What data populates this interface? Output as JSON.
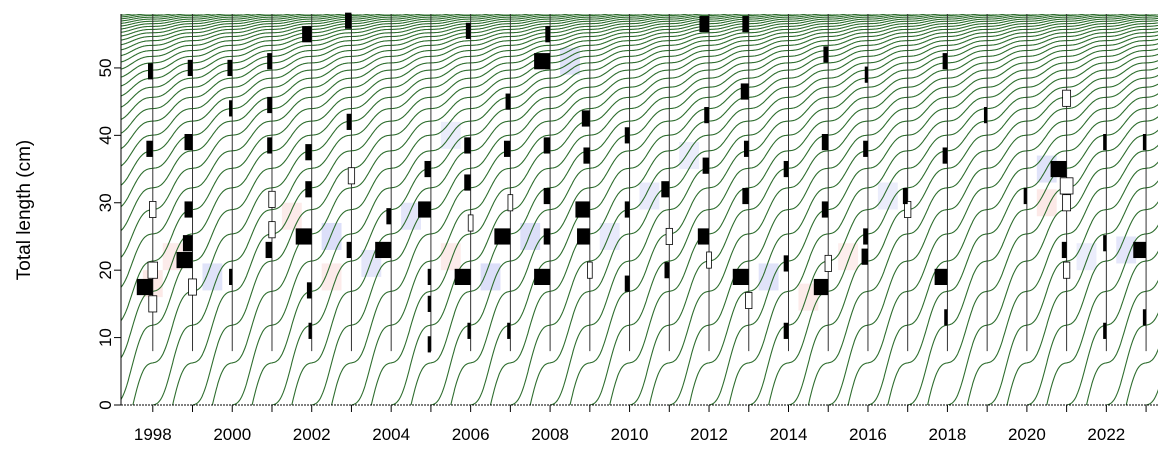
{
  "chart_data": {
    "type": "line",
    "xlabel": "",
    "ylabel": "Total length (cm)",
    "xlim": [
      1997.2,
      2023.3
    ],
    "ylim": [
      0,
      58
    ],
    "x_ticks": [
      1998,
      1999,
      2000,
      2001,
      2002,
      2003,
      2004,
      2005,
      2006,
      2007,
      2008,
      2009,
      2010,
      2011,
      2012,
      2013,
      2014,
      2015,
      2016,
      2017,
      2018,
      2019,
      2020,
      2021,
      2022,
      2023
    ],
    "x_tick_labels": [
      "1998",
      "",
      "2000",
      "",
      "2002",
      "",
      "2004",
      "",
      "2006",
      "",
      "2008",
      "",
      "2010",
      "",
      "2012",
      "",
      "2014",
      "",
      "2016",
      "",
      "2018",
      "",
      "2020",
      "",
      "2022",
      ""
    ],
    "y_ticks": [
      0,
      10,
      20,
      30,
      40,
      50
    ],
    "y_tick_labels": [
      "0",
      "10",
      "20",
      "30",
      "40",
      "50"
    ],
    "growth_curves": {
      "model": "seasonally oscillating von Bertalanffy growth",
      "Linf_cm": 60,
      "K_per_year": 0.22,
      "seasonal_amplitude": 0.9,
      "cohort_start_interval_years": 0.5,
      "first_cohort_start": 1972.0,
      "last_cohort_start": 2023.0,
      "color": "#2f6e2f"
    },
    "length_frequency": {
      "sample_years": [
        1998,
        1999,
        2000,
        2001,
        2002,
        2003,
        2004,
        2005,
        2006,
        2007,
        2008,
        2009,
        2010,
        2011,
        2012,
        2013,
        2014,
        2015,
        2016,
        2017,
        2018,
        2019,
        2020,
        2021,
        2022,
        2023
      ],
      "bin_lengths_cm": [
        8,
        12,
        16,
        20,
        24,
        28,
        32,
        36,
        40,
        44,
        48,
        52,
        56
      ],
      "positive_bar_color": "#000000",
      "negative_bar_color": "#ffffff",
      "sample_line_color": "#333333",
      "bars": [
        {
          "x": 1998,
          "len": 17.5,
          "v": 1.0
        },
        {
          "x": 1998,
          "len": 20.0,
          "v": -0.6
        },
        {
          "x": 1998,
          "len": 15.0,
          "v": -0.5
        },
        {
          "x": 1998,
          "len": 29.0,
          "v": -0.4
        },
        {
          "x": 1998,
          "len": 38.0,
          "v": 0.4
        },
        {
          "x": 1998,
          "len": 49.5,
          "v": 0.3
        },
        {
          "x": 1999,
          "len": 21.5,
          "v": 1.0
        },
        {
          "x": 1999,
          "len": 24.0,
          "v": 0.6
        },
        {
          "x": 1999,
          "len": 17.5,
          "v": -0.5
        },
        {
          "x": 1999,
          "len": 29.0,
          "v": 0.5
        },
        {
          "x": 1999,
          "len": 39.0,
          "v": 0.5
        },
        {
          "x": 1999,
          "len": 50.0,
          "v": 0.3
        },
        {
          "x": 2000,
          "len": 19.0,
          "v": 0.2
        },
        {
          "x": 2000,
          "len": 44.0,
          "v": 0.2
        },
        {
          "x": 2000,
          "len": 50.0,
          "v": 0.3
        },
        {
          "x": 2001,
          "len": 23.0,
          "v": 0.4
        },
        {
          "x": 2001,
          "len": 26.0,
          "v": -0.4
        },
        {
          "x": 2001,
          "len": 30.5,
          "v": -0.4
        },
        {
          "x": 2001,
          "len": 38.5,
          "v": 0.3
        },
        {
          "x": 2001,
          "len": 44.5,
          "v": 0.3
        },
        {
          "x": 2001,
          "len": 51.0,
          "v": 0.3
        },
        {
          "x": 2002,
          "len": 25.0,
          "v": 1.0
        },
        {
          "x": 2002,
          "len": 55.0,
          "v": 0.6
        },
        {
          "x": 2002,
          "len": 17.0,
          "v": 0.3
        },
        {
          "x": 2002,
          "len": 32.0,
          "v": 0.4
        },
        {
          "x": 2002,
          "len": 37.5,
          "v": 0.4
        },
        {
          "x": 2002,
          "len": 11.0,
          "v": 0.2
        },
        {
          "x": 2003,
          "len": 23.0,
          "v": 0.3
        },
        {
          "x": 2003,
          "len": 34.0,
          "v": -0.4
        },
        {
          "x": 2003,
          "len": 42.0,
          "v": 0.3
        },
        {
          "x": 2003,
          "len": 57.0,
          "v": 0.4
        },
        {
          "x": 2004,
          "len": 23.0,
          "v": 1.0
        },
        {
          "x": 2004,
          "len": 28.0,
          "v": 0.3
        },
        {
          "x": 2005,
          "len": 29.0,
          "v": 0.8
        },
        {
          "x": 2005,
          "len": 35.0,
          "v": 0.4
        },
        {
          "x": 2005,
          "len": 19.0,
          "v": 0.2
        },
        {
          "x": 2005,
          "len": 15.0,
          "v": 0.2
        },
        {
          "x": 2005,
          "len": 9.0,
          "v": 0.2
        },
        {
          "x": 2006,
          "len": 19.0,
          "v": 1.0
        },
        {
          "x": 2006,
          "len": 33.0,
          "v": 0.4
        },
        {
          "x": 2006,
          "len": 38.5,
          "v": 0.4
        },
        {
          "x": 2006,
          "len": 55.5,
          "v": 0.3
        },
        {
          "x": 2006,
          "len": 27.0,
          "v": -0.3
        },
        {
          "x": 2006,
          "len": 11.0,
          "v": 0.2
        },
        {
          "x": 2007,
          "len": 25.0,
          "v": 1.0
        },
        {
          "x": 2007,
          "len": 30.0,
          "v": -0.3
        },
        {
          "x": 2007,
          "len": 38.0,
          "v": 0.4
        },
        {
          "x": 2007,
          "len": 11.0,
          "v": 0.2
        },
        {
          "x": 2007,
          "len": 45.0,
          "v": 0.3
        },
        {
          "x": 2008,
          "len": 19.0,
          "v": 1.0
        },
        {
          "x": 2008,
          "len": 25.0,
          "v": 0.4
        },
        {
          "x": 2008,
          "len": 31.0,
          "v": 0.4
        },
        {
          "x": 2008,
          "len": 38.5,
          "v": 0.4
        },
        {
          "x": 2008,
          "len": 51.0,
          "v": 1.0
        },
        {
          "x": 2008,
          "len": 55.0,
          "v": 0.3
        },
        {
          "x": 2009,
          "len": 25.0,
          "v": 0.8
        },
        {
          "x": 2009,
          "len": 29.0,
          "v": 0.9
        },
        {
          "x": 2009,
          "len": 37.0,
          "v": 0.4
        },
        {
          "x": 2009,
          "len": 42.5,
          "v": 0.5
        },
        {
          "x": 2009,
          "len": 20.0,
          "v": -0.3
        },
        {
          "x": 2010,
          "len": 18.0,
          "v": 0.3
        },
        {
          "x": 2010,
          "len": 29.0,
          "v": 0.3
        },
        {
          "x": 2010,
          "len": 40.0,
          "v": 0.3
        },
        {
          "x": 2011,
          "len": 25.0,
          "v": -0.4
        },
        {
          "x": 2011,
          "len": 32.0,
          "v": 0.5
        },
        {
          "x": 2011,
          "len": 20.0,
          "v": 0.3
        },
        {
          "x": 2012,
          "len": 25.0,
          "v": 0.7
        },
        {
          "x": 2012,
          "len": 35.5,
          "v": 0.4
        },
        {
          "x": 2012,
          "len": 43.0,
          "v": 0.3
        },
        {
          "x": 2012,
          "len": 56.5,
          "v": 0.6
        },
        {
          "x": 2012,
          "len": 21.5,
          "v": -0.3
        },
        {
          "x": 2013,
          "len": 19.0,
          "v": 1.0
        },
        {
          "x": 2013,
          "len": 46.5,
          "v": 0.5
        },
        {
          "x": 2013,
          "len": 31.0,
          "v": 0.4
        },
        {
          "x": 2013,
          "len": 15.5,
          "v": -0.4
        },
        {
          "x": 2013,
          "len": 56.5,
          "v": 0.4
        },
        {
          "x": 2013,
          "len": 38.0,
          "v": 0.3
        },
        {
          "x": 2014,
          "len": 21.0,
          "v": 0.3
        },
        {
          "x": 2014,
          "len": 35.0,
          "v": 0.3
        },
        {
          "x": 2014,
          "len": 11.0,
          "v": 0.3
        },
        {
          "x": 2015,
          "len": 17.5,
          "v": 0.9
        },
        {
          "x": 2015,
          "len": 39.0,
          "v": 0.4
        },
        {
          "x": 2015,
          "len": 29.0,
          "v": 0.4
        },
        {
          "x": 2015,
          "len": 21.0,
          "v": -0.4
        },
        {
          "x": 2015,
          "len": 52.0,
          "v": 0.3
        },
        {
          "x": 2016,
          "len": 22.0,
          "v": 0.4
        },
        {
          "x": 2016,
          "len": 25.0,
          "v": 0.3
        },
        {
          "x": 2016,
          "len": 38.0,
          "v": 0.3
        },
        {
          "x": 2016,
          "len": 49.0,
          "v": 0.2
        },
        {
          "x": 2017,
          "len": 29.0,
          "v": -0.4
        },
        {
          "x": 2017,
          "len": 31.0,
          "v": 0.3
        },
        {
          "x": 2018,
          "len": 19.0,
          "v": 0.8
        },
        {
          "x": 2018,
          "len": 37.0,
          "v": 0.3
        },
        {
          "x": 2018,
          "len": 51.0,
          "v": 0.3
        },
        {
          "x": 2018,
          "len": 13.0,
          "v": 0.2
        },
        {
          "x": 2019,
          "len": 43.0,
          "v": 0.2
        },
        {
          "x": 2020,
          "len": 31.0,
          "v": 0.2
        },
        {
          "x": 2021,
          "len": 35.0,
          "v": 1.0
        },
        {
          "x": 2021,
          "len": 32.5,
          "v": -0.8
        },
        {
          "x": 2021,
          "len": 30.0,
          "v": -0.5
        },
        {
          "x": 2021,
          "len": 45.5,
          "v": -0.5
        },
        {
          "x": 2021,
          "len": 20.0,
          "v": -0.4
        },
        {
          "x": 2021,
          "len": 23.0,
          "v": 0.3
        },
        {
          "x": 2022,
          "len": 11.0,
          "v": 0.2
        },
        {
          "x": 2022,
          "len": 24.0,
          "v": 0.2
        },
        {
          "x": 2022,
          "len": 39.0,
          "v": 0.2
        },
        {
          "x": 2023,
          "len": 23.0,
          "v": 0.8
        },
        {
          "x": 2023,
          "len": 13.0,
          "v": 0.2
        },
        {
          "x": 2023,
          "len": 39.0,
          "v": 0.2
        }
      ]
    },
    "background_shading": {
      "positive_color": "#d8dcf8",
      "negative_color": "#fbe3e1",
      "cells": [
        {
          "x": 1998,
          "len": 18,
          "v": -0.6
        },
        {
          "x": 1998.5,
          "len": 22,
          "v": -0.5
        },
        {
          "x": 1999.5,
          "len": 19,
          "v": 0.6
        },
        {
          "x": 2001.5,
          "len": 28,
          "v": -0.5
        },
        {
          "x": 2002.5,
          "len": 25,
          "v": 0.7
        },
        {
          "x": 2002.5,
          "len": 19,
          "v": -0.5
        },
        {
          "x": 2003.5,
          "len": 21,
          "v": 0.5
        },
        {
          "x": 2004.5,
          "len": 28,
          "v": 0.5
        },
        {
          "x": 2005.5,
          "len": 22,
          "v": -0.5
        },
        {
          "x": 2006.5,
          "len": 19,
          "v": 0.7
        },
        {
          "x": 2007.5,
          "len": 25,
          "v": 0.7
        },
        {
          "x": 2008.5,
          "len": 51,
          "v": 0.6
        },
        {
          "x": 2009.5,
          "len": 25,
          "v": 0.4
        },
        {
          "x": 2010.5,
          "len": 31,
          "v": 0.4
        },
        {
          "x": 2013.5,
          "len": 19,
          "v": 0.6
        },
        {
          "x": 2014.5,
          "len": 16,
          "v": -0.5
        },
        {
          "x": 2015.5,
          "len": 22,
          "v": -0.4
        },
        {
          "x": 2016.5,
          "len": 31,
          "v": 0.3
        },
        {
          "x": 2020.5,
          "len": 35,
          "v": 0.6
        },
        {
          "x": 2020.5,
          "len": 30,
          "v": -0.6
        },
        {
          "x": 2021.5,
          "len": 22,
          "v": 0.3
        },
        {
          "x": 2022.5,
          "len": 23,
          "v": 0.5
        },
        {
          "x": 2005.5,
          "len": 40,
          "v": 0.3
        },
        {
          "x": 2011.5,
          "len": 37,
          "v": 0.3
        }
      ]
    }
  }
}
